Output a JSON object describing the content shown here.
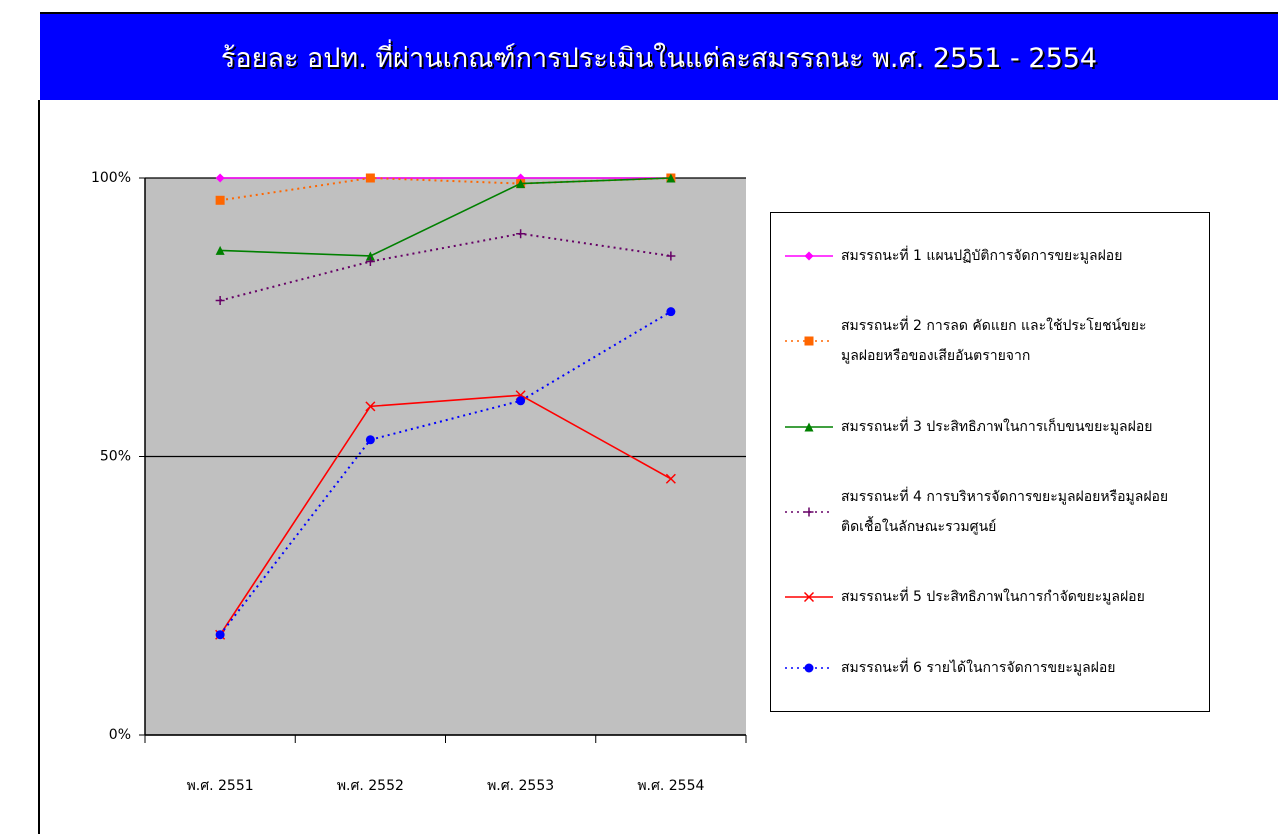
{
  "chart_data": {
    "type": "line",
    "title": "ร้อยละ อปท. ที่ผ่านเกณฑ์การประเมินในแต่ละสมรรถนะ พ.ศ. 2551 - 2554",
    "categories": [
      "พ.ศ. 2551",
      "พ.ศ. 2552",
      "พ.ศ. 2553",
      "พ.ศ. 2554"
    ],
    "ylim": [
      0,
      100
    ],
    "yticks": [
      {
        "value": 0,
        "label": "0%"
      },
      {
        "value": 50,
        "label": "50%"
      },
      {
        "value": 100,
        "label": "100%"
      }
    ],
    "grid": true,
    "plot_background": "#c0c0c0",
    "legend": "right",
    "series": [
      {
        "name": "สมรรถนะที่ 1 แผนปฏิบัติการจัดการขยะมูลฝอย",
        "color": "#ff00ff",
        "dash": false,
        "marker": "diamond",
        "values": [
          100,
          100,
          100,
          100
        ]
      },
      {
        "name": "สมรรถนะที่ 2 การลด คัดแยก และใช้ประโยชน์ขยะมูลฝอยหรือของเสียอันตรายจาก",
        "color": "#ff6600",
        "dash": true,
        "marker": "square",
        "values": [
          96,
          100,
          99,
          100
        ]
      },
      {
        "name": "สมรรถนะที่ 3 ประสิทธิภาพในการเก็บขนขยะมูลฝอย",
        "color": "#008000",
        "dash": false,
        "marker": "triangle",
        "values": [
          87,
          86,
          99,
          100
        ]
      },
      {
        "name": "สมรรถนะที่ 4 การบริหารจัดการขยะมูลฝอยหรือมูลฝอยติดเชื้อในลักษณะรวมศูนย์",
        "color": "#660066",
        "dash": true,
        "marker": "plus",
        "values": [
          78,
          85,
          90,
          86
        ]
      },
      {
        "name": "สมรรถนะที่ 5 ประสิทธิภาพในการกำจัดขยะมูลฝอย",
        "color": "#ff0000",
        "dash": false,
        "marker": "x",
        "values": [
          18,
          59,
          61,
          46
        ]
      },
      {
        "name": "สมรรถนะที่ 6 รายได้ในการจัดการขยะมูลฝอย",
        "color": "#0000ff",
        "dash": true,
        "marker": "circle",
        "values": [
          18,
          53,
          60,
          76
        ]
      }
    ]
  }
}
